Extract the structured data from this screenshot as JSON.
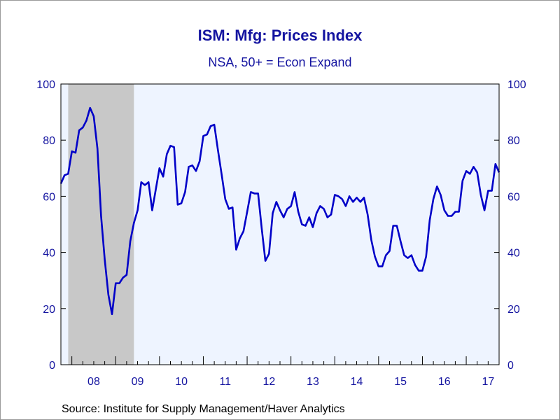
{
  "title": "ISM: Mfg: Prices Index",
  "subtitle": "NSA, 50+ = Econ Expand",
  "source": "Source:  Institute for Supply Management/Haver Analytics",
  "colors": {
    "line": "#0000c8",
    "axis_text": "#1414a0",
    "plot_bg": "#eef4ff",
    "recession": "#c8c8c8",
    "axis": "#000000"
  },
  "chart_data": {
    "type": "line",
    "title": "ISM: Mfg: Prices Index",
    "subtitle": "NSA, 50+ = Econ Expand",
    "xlabel": "",
    "ylabel": "",
    "ylim": [
      0,
      100
    ],
    "xlim": [
      "2007-10",
      "2017-10"
    ],
    "grid": false,
    "legend": "none",
    "y_ticks": [
      0,
      20,
      40,
      60,
      80,
      100
    ],
    "y_tick_labels": [
      "0",
      "20",
      "40",
      "60",
      "80",
      "100"
    ],
    "x_tick_labels": [
      "08",
      "09",
      "10",
      "11",
      "12",
      "13",
      "14",
      "15",
      "16",
      "17"
    ],
    "recession_shading": {
      "start": "2007-12",
      "end": "2009-06"
    },
    "series": [
      {
        "x": [
          "2007-10",
          "2007-11",
          "2007-12",
          "2008-01",
          "2008-02",
          "2008-03",
          "2008-04",
          "2008-05",
          "2008-06",
          "2008-07",
          "2008-08",
          "2008-09",
          "2008-10",
          "2008-11",
          "2008-12",
          "2009-01",
          "2009-02",
          "2009-03",
          "2009-04",
          "2009-05",
          "2009-06",
          "2009-07",
          "2009-08",
          "2009-09",
          "2009-10",
          "2009-11",
          "2009-12",
          "2010-01",
          "2010-02",
          "2010-03",
          "2010-04",
          "2010-05",
          "2010-06",
          "2010-07",
          "2010-08",
          "2010-09",
          "2010-10",
          "2010-11",
          "2010-12",
          "2011-01",
          "2011-02",
          "2011-03",
          "2011-04",
          "2011-05",
          "2011-06",
          "2011-07",
          "2011-08",
          "2011-09",
          "2011-10",
          "2011-11",
          "2011-12",
          "2012-01",
          "2012-02",
          "2012-03",
          "2012-04",
          "2012-05",
          "2012-06",
          "2012-07",
          "2012-08",
          "2012-09",
          "2012-10",
          "2012-11",
          "2012-12",
          "2013-01",
          "2013-02",
          "2013-03",
          "2013-04",
          "2013-05",
          "2013-06",
          "2013-07",
          "2013-08",
          "2013-09",
          "2013-10",
          "2013-11",
          "2013-12",
          "2014-01",
          "2014-02",
          "2014-03",
          "2014-04",
          "2014-05",
          "2014-06",
          "2014-07",
          "2014-08",
          "2014-09",
          "2014-10",
          "2014-11",
          "2014-12",
          "2015-01",
          "2015-02",
          "2015-03",
          "2015-04",
          "2015-05",
          "2015-06",
          "2015-07",
          "2015-08",
          "2015-09",
          "2015-10",
          "2015-11",
          "2015-12",
          "2016-01",
          "2016-02",
          "2016-03",
          "2016-04",
          "2016-05",
          "2016-06",
          "2016-07",
          "2016-08",
          "2016-09",
          "2016-10",
          "2016-11",
          "2016-12",
          "2017-01",
          "2017-02",
          "2017-03",
          "2017-04",
          "2017-05",
          "2017-06",
          "2017-07",
          "2017-08",
          "2017-09",
          "2017-10"
        ],
        "values": [
          64.5,
          67.5,
          68,
          76,
          75.5,
          83.5,
          84.5,
          87,
          91.5,
          88.5,
          77,
          53,
          37.5,
          25,
          18,
          29,
          29,
          31,
          32,
          44,
          50.5,
          55,
          65,
          64,
          65,
          55,
          62.5,
          70,
          67,
          75,
          78,
          77.5,
          57,
          57.5,
          61.5,
          70.5,
          71,
          69,
          72.5,
          81.5,
          82,
          85,
          85.5,
          76.5,
          68,
          59,
          55.5,
          56,
          41,
          45,
          47.5,
          54.5,
          61.5,
          61,
          61,
          48.5,
          37,
          39.5,
          54,
          58,
          55,
          52.5,
          55.5,
          56.5,
          61.5,
          54.5,
          50,
          49.5,
          52.5,
          49,
          54,
          56.5,
          55.5,
          52.5,
          53.5,
          60.5,
          60,
          59,
          56.5,
          60,
          58,
          59.5,
          58,
          59.5,
          53.5,
          44.5,
          38.5,
          35,
          35,
          39,
          40.5,
          49.5,
          49.5,
          44,
          39,
          38,
          39,
          35.5,
          33.5,
          33.5,
          38.5,
          51.5,
          59,
          63.5,
          60.5,
          55,
          53,
          53,
          54.5,
          54.5,
          65.5,
          69,
          68,
          70.5,
          68.5,
          60.5,
          55,
          62,
          62,
          71.5,
          68.5
        ]
      }
    ]
  }
}
